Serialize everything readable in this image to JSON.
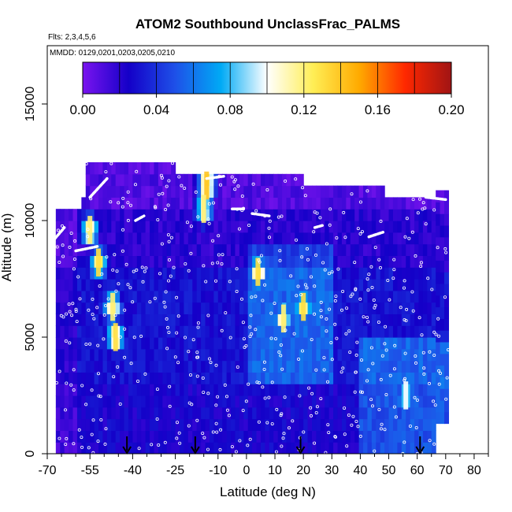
{
  "chart_data": {
    "type": "heatmap",
    "title": "ATOM2 Southbound UnclassFrac_PALMS",
    "subtitle_flights": "Flts: 2,3,4,5,6",
    "subtitle_dates": "MMDD: 0129,0201,0203,0205,0210",
    "xlabel": "Latitude (deg N)",
    "ylabel": "Altitude (m)",
    "xlim": [
      -70,
      85
    ],
    "ylim": [
      0,
      17500
    ],
    "x_ticks": [
      -70,
      -55,
      -40,
      -25,
      -10,
      0,
      10,
      20,
      30,
      40,
      50,
      60,
      70,
      80
    ],
    "x_minor_ticks": [
      -65,
      -60,
      -50,
      -45,
      -35,
      -30,
      -20,
      -15,
      -5,
      5,
      15,
      25,
      35,
      45,
      55,
      65,
      75,
      85
    ],
    "y_ticks": [
      0,
      5000,
      10000,
      15000
    ],
    "colorbar": {
      "min": 0.0,
      "max": 0.2,
      "tick_values": [
        0.0,
        0.04,
        0.08,
        0.12,
        0.16,
        0.2
      ],
      "tick_labels": [
        "0.00",
        "0.04",
        "0.08",
        "0.12",
        "0.16",
        "0.20"
      ],
      "location": "top-inside",
      "colors": [
        "#7a14ef",
        "#1400c8",
        "#1e50e8",
        "#00aaf5",
        "#ffffff",
        "#ffee55",
        "#ffaa00",
        "#ff2800",
        "#a01414"
      ]
    },
    "arrows_latitude": [
      -42,
      -18,
      19,
      61
    ],
    "grid": false,
    "data_coverage": {
      "lat_range": [
        -67,
        71
      ],
      "alt_range": [
        0,
        12500
      ]
    },
    "hot_spots": [
      {
        "lat": -55,
        "alt": 9600,
        "value": 0.12
      },
      {
        "lat": -52,
        "alt": 8200,
        "value": 0.13
      },
      {
        "lat": -47,
        "alt": 6300,
        "value": 0.12
      },
      {
        "lat": -46,
        "alt": 5000,
        "value": 0.13
      },
      {
        "lat": -14,
        "alt": 11500,
        "value": 0.14
      },
      {
        "lat": -15,
        "alt": 10500,
        "value": 0.12
      },
      {
        "lat": 4,
        "alt": 7800,
        "value": 0.13
      },
      {
        "lat": 13,
        "alt": 5800,
        "value": 0.12
      },
      {
        "lat": 20,
        "alt": 6300,
        "value": 0.13
      },
      {
        "lat": 56,
        "alt": 2500,
        "value": 0.1
      }
    ]
  }
}
